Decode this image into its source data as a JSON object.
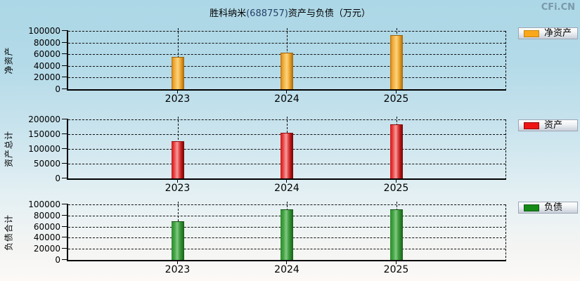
{
  "page": {
    "title_part1": "胜科纳米",
    "title_code": "(688757)",
    "title_part2": "资产与负债（万元）",
    "brand": "CFi.CN",
    "background_top_color": "#acd7e6",
    "background_bottom_color": "#fcf9f7"
  },
  "chart_data": [
    {
      "type": "bar",
      "title": "净资产",
      "ylabel": "净资产",
      "legend": "净资产",
      "legend_position": "right",
      "categories": [
        "2023",
        "2024",
        "2025"
      ],
      "values": [
        54000,
        61000,
        91000
      ],
      "ylim": [
        0,
        100000
      ],
      "yticks": [
        0,
        20000,
        40000,
        60000,
        80000,
        100000
      ],
      "grid": true,
      "bar_color": "#f2a72e",
      "bar_style": "orange"
    },
    {
      "type": "bar",
      "title": "资产总计",
      "ylabel": "资产总计",
      "legend": "资产",
      "legend_position": "right",
      "categories": [
        "2023",
        "2024",
        "2025"
      ],
      "values": [
        124000,
        152000,
        182000
      ],
      "ylim": [
        0,
        200000
      ],
      "yticks": [
        0,
        50000,
        100000,
        150000,
        200000
      ],
      "grid": true,
      "bar_color": "#e02525",
      "bar_style": "red"
    },
    {
      "type": "bar",
      "title": "负债合计",
      "ylabel": "负债合计",
      "legend": "负债",
      "legend_position": "right",
      "categories": [
        "2023",
        "2024",
        "2025"
      ],
      "values": [
        69000,
        90000,
        90000
      ],
      "ylim": [
        0,
        100000
      ],
      "yticks": [
        0,
        20000,
        40000,
        60000,
        80000,
        100000
      ],
      "grid": true,
      "bar_color": "#2e8b2e",
      "bar_style": "green"
    }
  ]
}
